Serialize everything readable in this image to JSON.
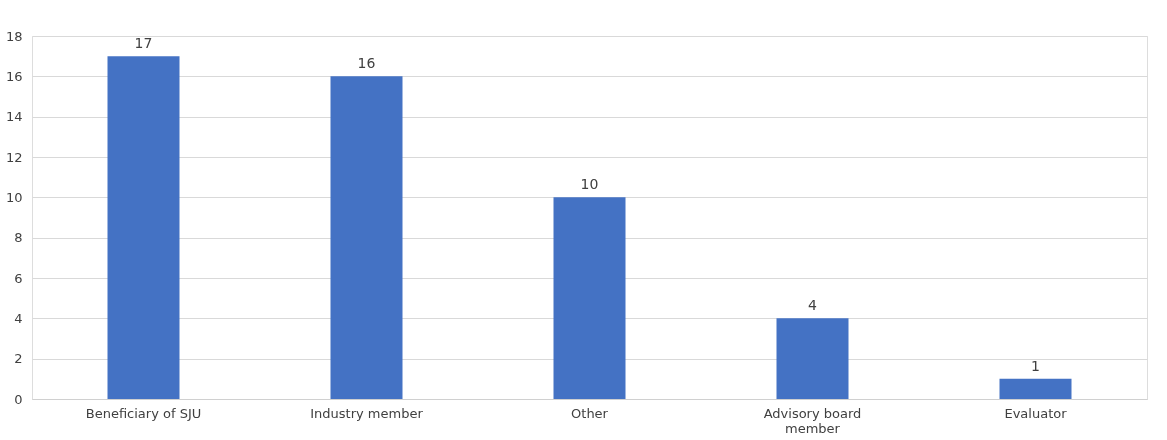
{
  "chart_data": {
    "type": "bar",
    "categories": [
      "Beneficiary of SJU",
      "Industry member",
      "Other",
      "Advisory board member",
      "Evaluator"
    ],
    "values": [
      17,
      16,
      10,
      4,
      1
    ],
    "color": "#4472c4",
    "ylim": [
      0,
      18
    ],
    "yticks": [
      0,
      2,
      4,
      6,
      8,
      10,
      12,
      14,
      16,
      18
    ],
    "grid": "y",
    "data_labels": true
  }
}
